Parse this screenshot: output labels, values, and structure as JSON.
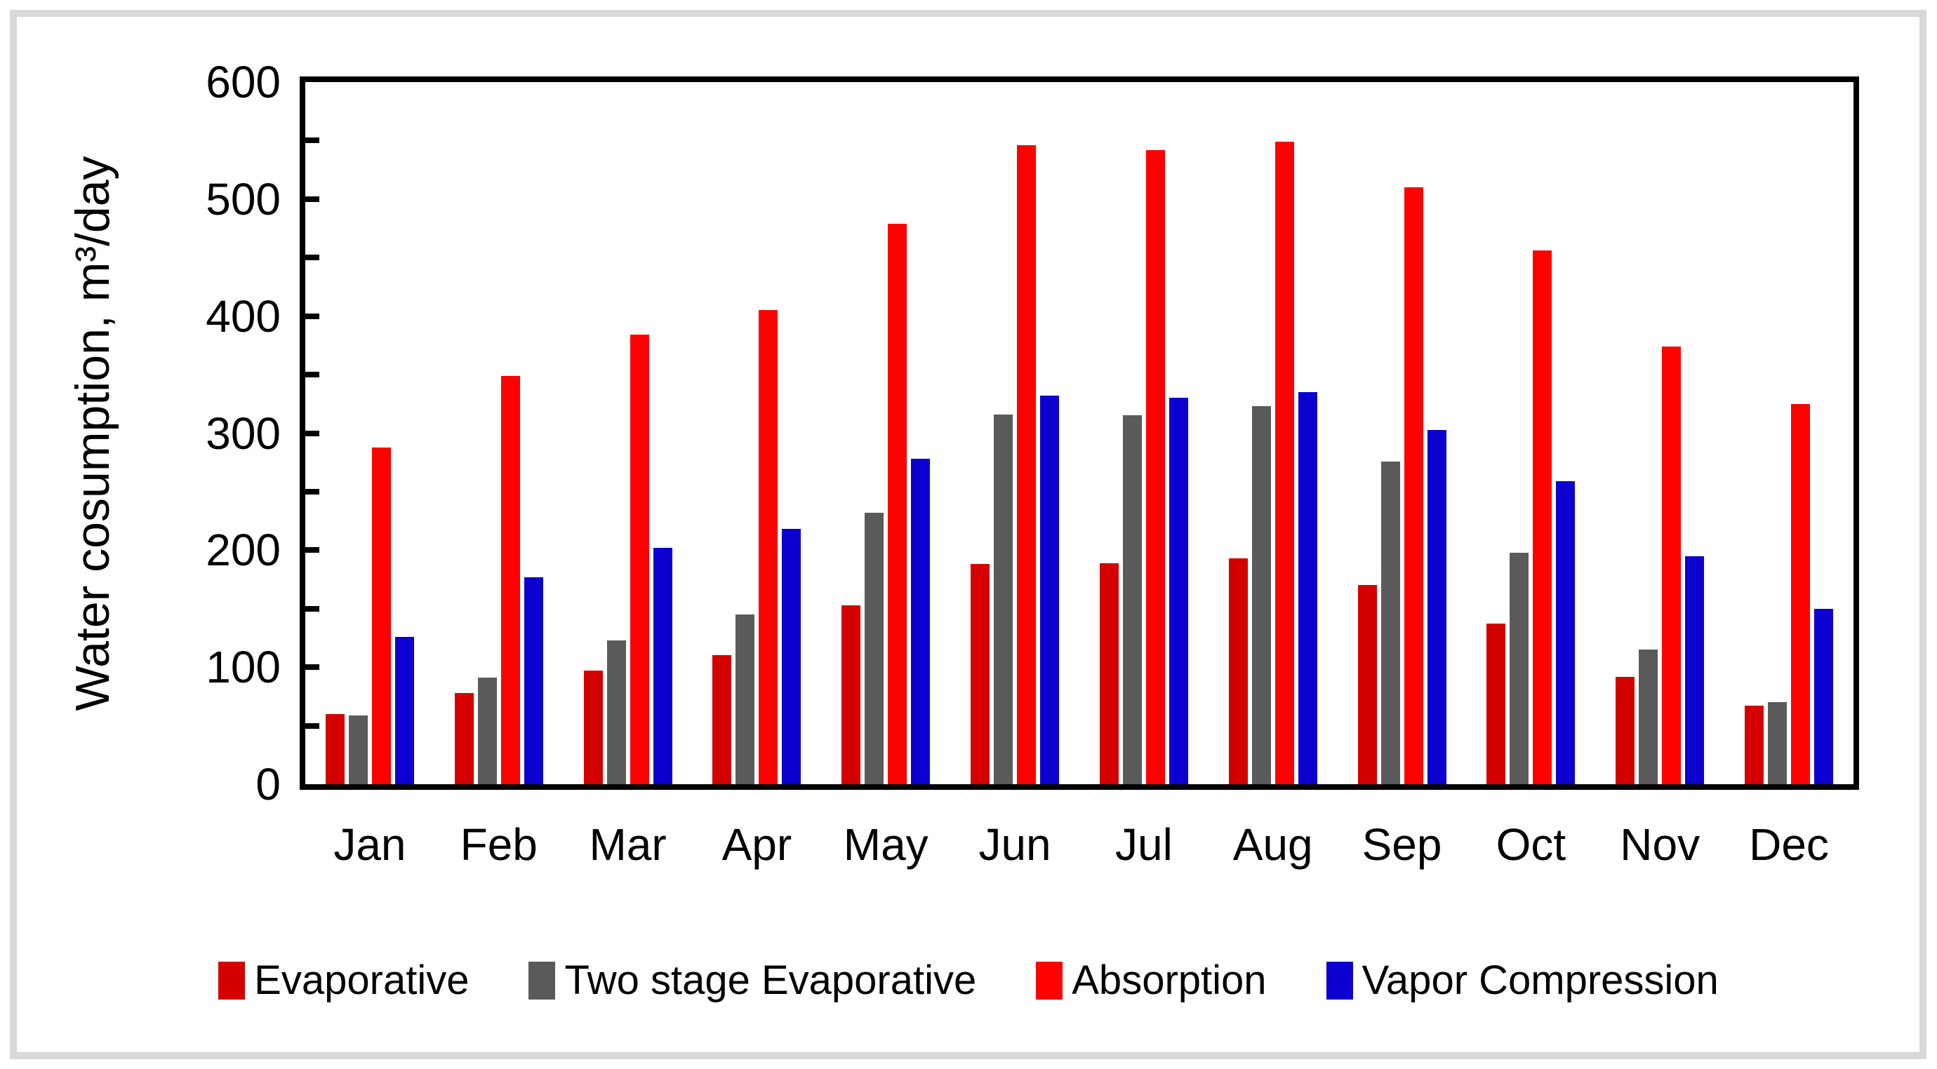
{
  "figure": {
    "background": "#FFFFFF",
    "border_color": "#D8D8D8"
  },
  "chart_data": {
    "type": "bar",
    "title": "",
    "xlabel": "",
    "ylabel": "Water cosumption, m³/day",
    "ylim": [
      0,
      600
    ],
    "y_major_tick_step": 100,
    "y_minor_tick_step": 50,
    "y_tick_labels": [
      "0",
      "100",
      "200",
      "300",
      "400",
      "500",
      "600"
    ],
    "grid": false,
    "legend_position": "bottom",
    "categories": [
      "Jan",
      "Feb",
      "Mar",
      "Apr",
      "May",
      "Jun",
      "Jul",
      "Aug",
      "Sep",
      "Oct",
      "Nov",
      "Dec"
    ],
    "series": [
      {
        "name": "Evaporative",
        "color": "#D40000",
        "values": [
          60,
          78,
          97,
          110,
          153,
          188,
          189,
          193,
          170,
          137,
          92,
          67
        ]
      },
      {
        "name": "Two stage Evaporative",
        "color": "#5A5A5A",
        "values": [
          59,
          91,
          123,
          145,
          232,
          316,
          315,
          323,
          276,
          198,
          115,
          70
        ]
      },
      {
        "name": "Absorption",
        "color": "#FF0000",
        "values": [
          288,
          349,
          384,
          405,
          479,
          546,
          542,
          549,
          510,
          456,
          374,
          325
        ]
      },
      {
        "name": "Vapor Compression",
        "color": "#0C00D0",
        "values": [
          126,
          177,
          202,
          218,
          278,
          332,
          330,
          335,
          303,
          259,
          195,
          150
        ]
      }
    ]
  }
}
